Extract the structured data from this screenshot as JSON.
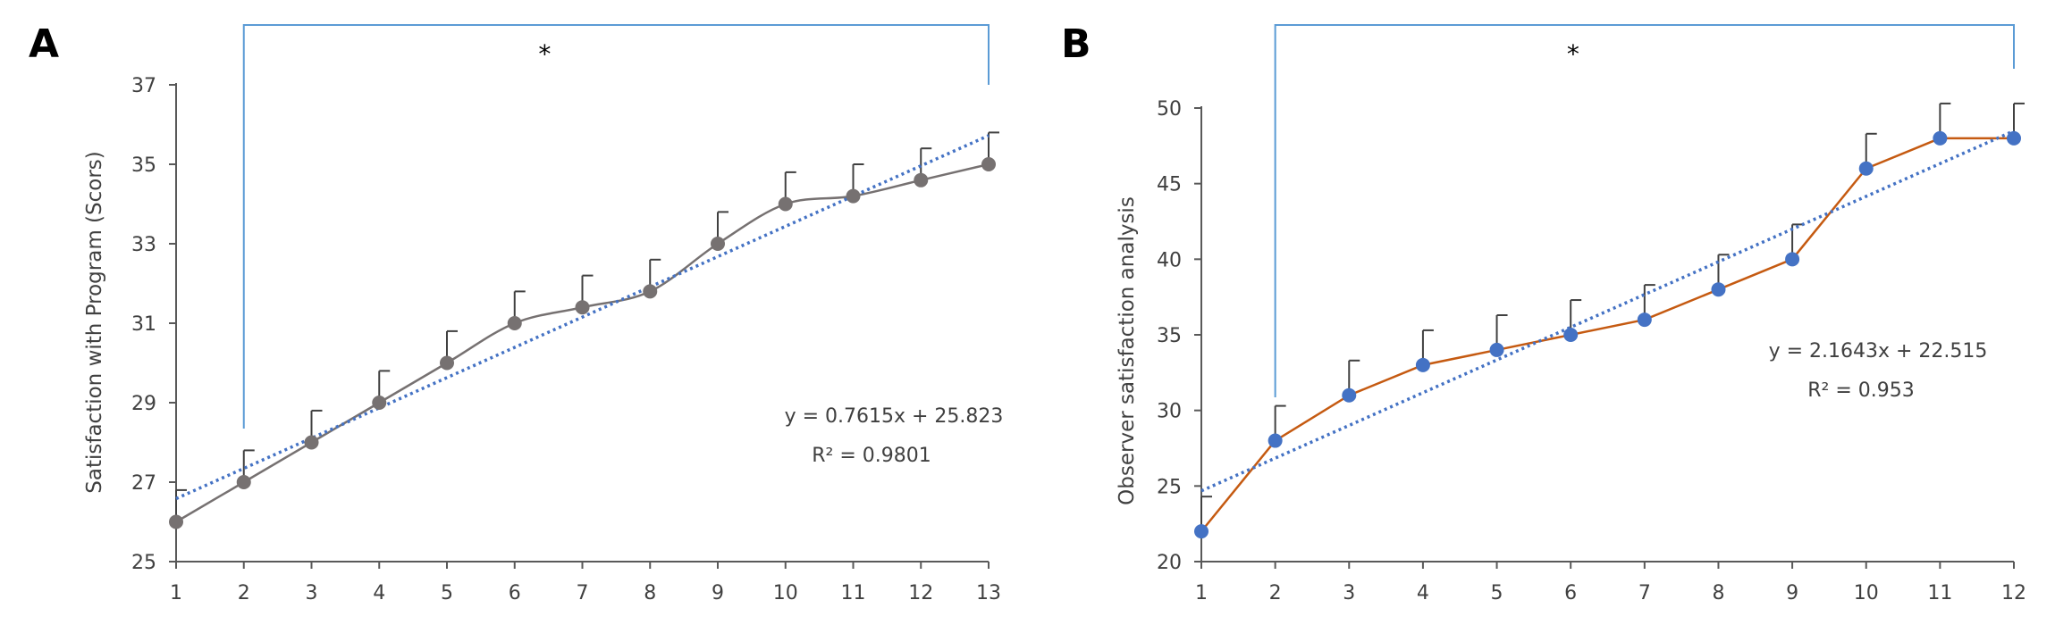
{
  "chart_data": [
    {
      "panel_label": "A",
      "type": "line",
      "ylabel": "Satisfaction with Program (Scors)",
      "ylim": [
        25,
        37
      ],
      "yticks": [
        25,
        27,
        29,
        31,
        33,
        35,
        37
      ],
      "xticks": [
        1,
        2,
        3,
        4,
        5,
        6,
        7,
        8,
        9,
        10,
        11,
        12,
        13
      ],
      "series": [
        {
          "x": [
            1,
            2,
            3,
            4,
            5,
            6,
            7,
            8,
            9,
            10,
            11,
            12,
            13
          ],
          "values": [
            26,
            27,
            28,
            29,
            30,
            31,
            31.4,
            31.8,
            33,
            34,
            34.2,
            34.6,
            35
          ],
          "error": [
            0.8,
            0.8,
            0.8,
            0.8,
            0.8,
            0.8,
            0.8,
            0.8,
            0.8,
            0.8,
            0.8,
            0.8,
            0.8
          ],
          "line_color": "#767171",
          "marker_color": "#767171",
          "smooth": true
        }
      ],
      "trendline": {
        "slope": 0.7615,
        "intercept": 25.823,
        "color": "#4472c4"
      },
      "equation": "y = 0.7615x + 25.823",
      "r_squared": "R² = 0.9801",
      "significance": {
        "from": 2,
        "to": 13,
        "label": "*",
        "color": "#5b9bd5"
      },
      "grid": false
    },
    {
      "panel_label": "B",
      "type": "line",
      "ylabel": "Observer satisfaction analysis",
      "ylim": [
        20,
        50
      ],
      "yticks": [
        20,
        25,
        30,
        35,
        40,
        45,
        50
      ],
      "xticks": [
        1,
        2,
        3,
        4,
        5,
        6,
        7,
        8,
        9,
        10,
        11,
        12
      ],
      "series": [
        {
          "x": [
            1,
            2,
            3,
            4,
            5,
            6,
            7,
            8,
            9,
            10,
            11,
            12
          ],
          "values": [
            22,
            28,
            31,
            33,
            34,
            35,
            36,
            38,
            40,
            46,
            48,
            48
          ],
          "error": [
            2.3,
            2.3,
            2.3,
            2.3,
            2.3,
            2.3,
            2.3,
            2.3,
            2.3,
            2.3,
            2.3,
            2.3
          ],
          "line_color": "#c55a11",
          "marker_color": "#4472c4",
          "smooth": false
        }
      ],
      "trendline": {
        "slope": 2.1643,
        "intercept": 22.515,
        "color": "#4472c4"
      },
      "equation": "y = 2.1643x + 22.515",
      "r_squared": "R² = 0.953",
      "significance": {
        "from": 2,
        "to": 12,
        "label": "*",
        "color": "#5b9bd5"
      },
      "grid": false
    }
  ]
}
